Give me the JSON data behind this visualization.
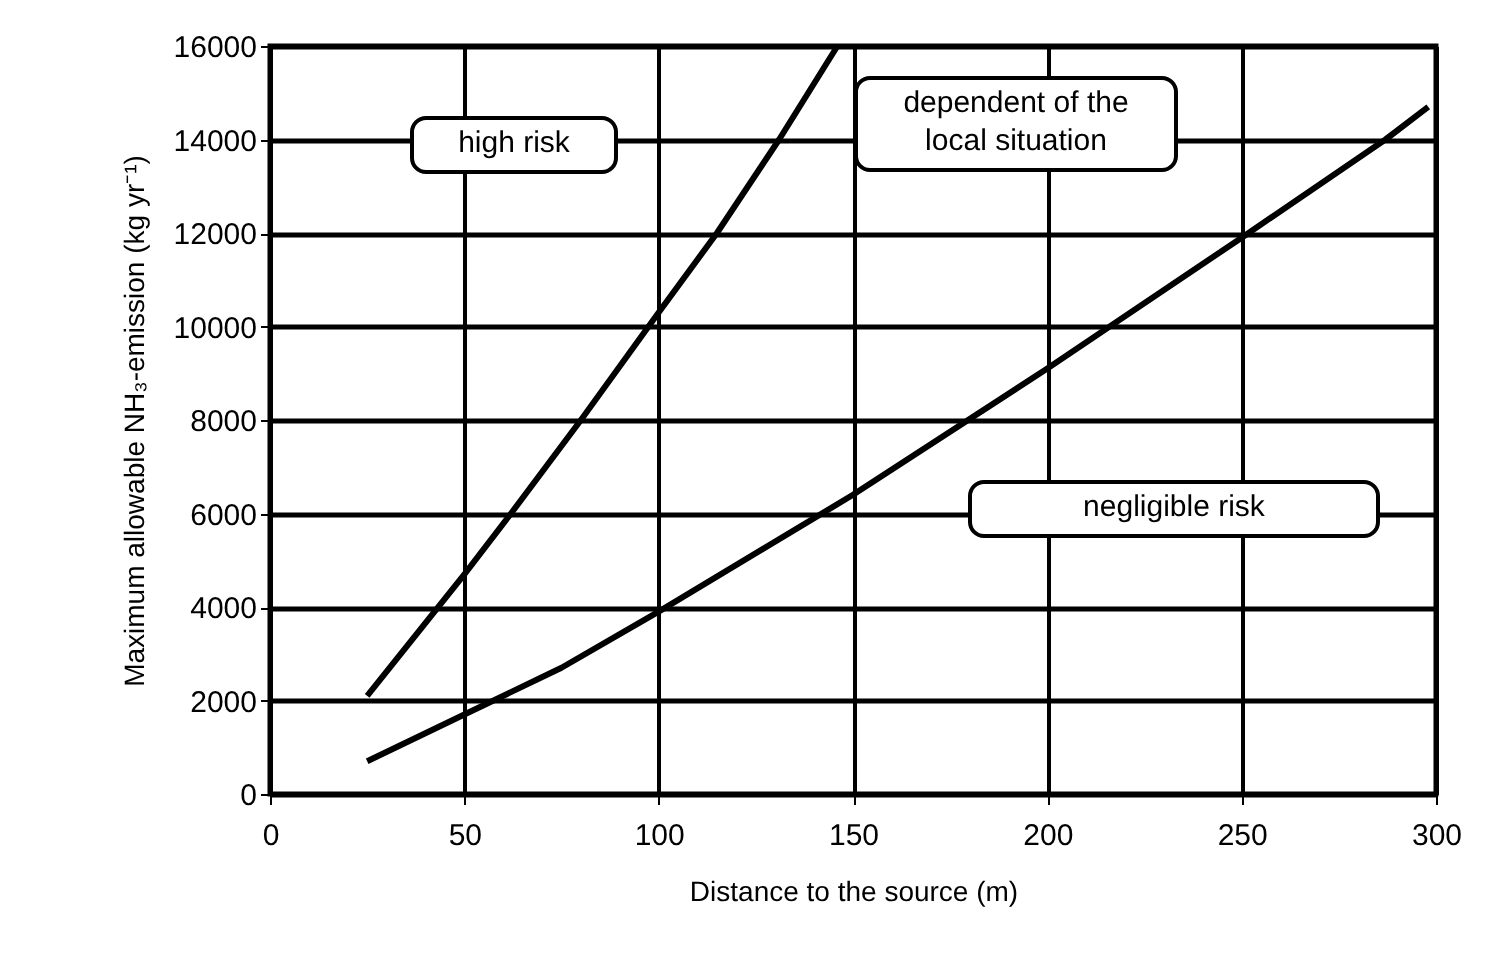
{
  "chart_data": {
    "type": "line",
    "xlabel": "Distance to the source (m)",
    "ylabel": "Maximum allowable NH₃-emission (kg yr⁻¹)",
    "annotations": [
      "high risk",
      "dependent of the local situation",
      "negligible risk"
    ],
    "series": [
      {
        "color": "#000000",
        "x": [
          25,
          50,
          62,
          80,
          100,
          115,
          131,
          146
        ],
        "values": [
          2100,
          4700,
          6000,
          8000,
          10300,
          12000,
          14000,
          16000
        ]
      },
      {
        "color": "#000000",
        "x": [
          25,
          50,
          75,
          100,
          150,
          200,
          250,
          287,
          298
        ],
        "values": [
          700,
          1700,
          2700,
          3900,
          6400,
          9100,
          11900,
          14000,
          14700
        ]
      }
    ],
    "xlim": [
      0,
      300
    ],
    "xticks": [
      0,
      50,
      100,
      150,
      200,
      250,
      300
    ],
    "ylim": [
      0,
      16000
    ],
    "yticks": [
      0,
      2000,
      4000,
      6000,
      8000,
      10000,
      12000,
      14000,
      16000
    ],
    "grid": true,
    "marker": "none",
    "line_style": "solid"
  }
}
